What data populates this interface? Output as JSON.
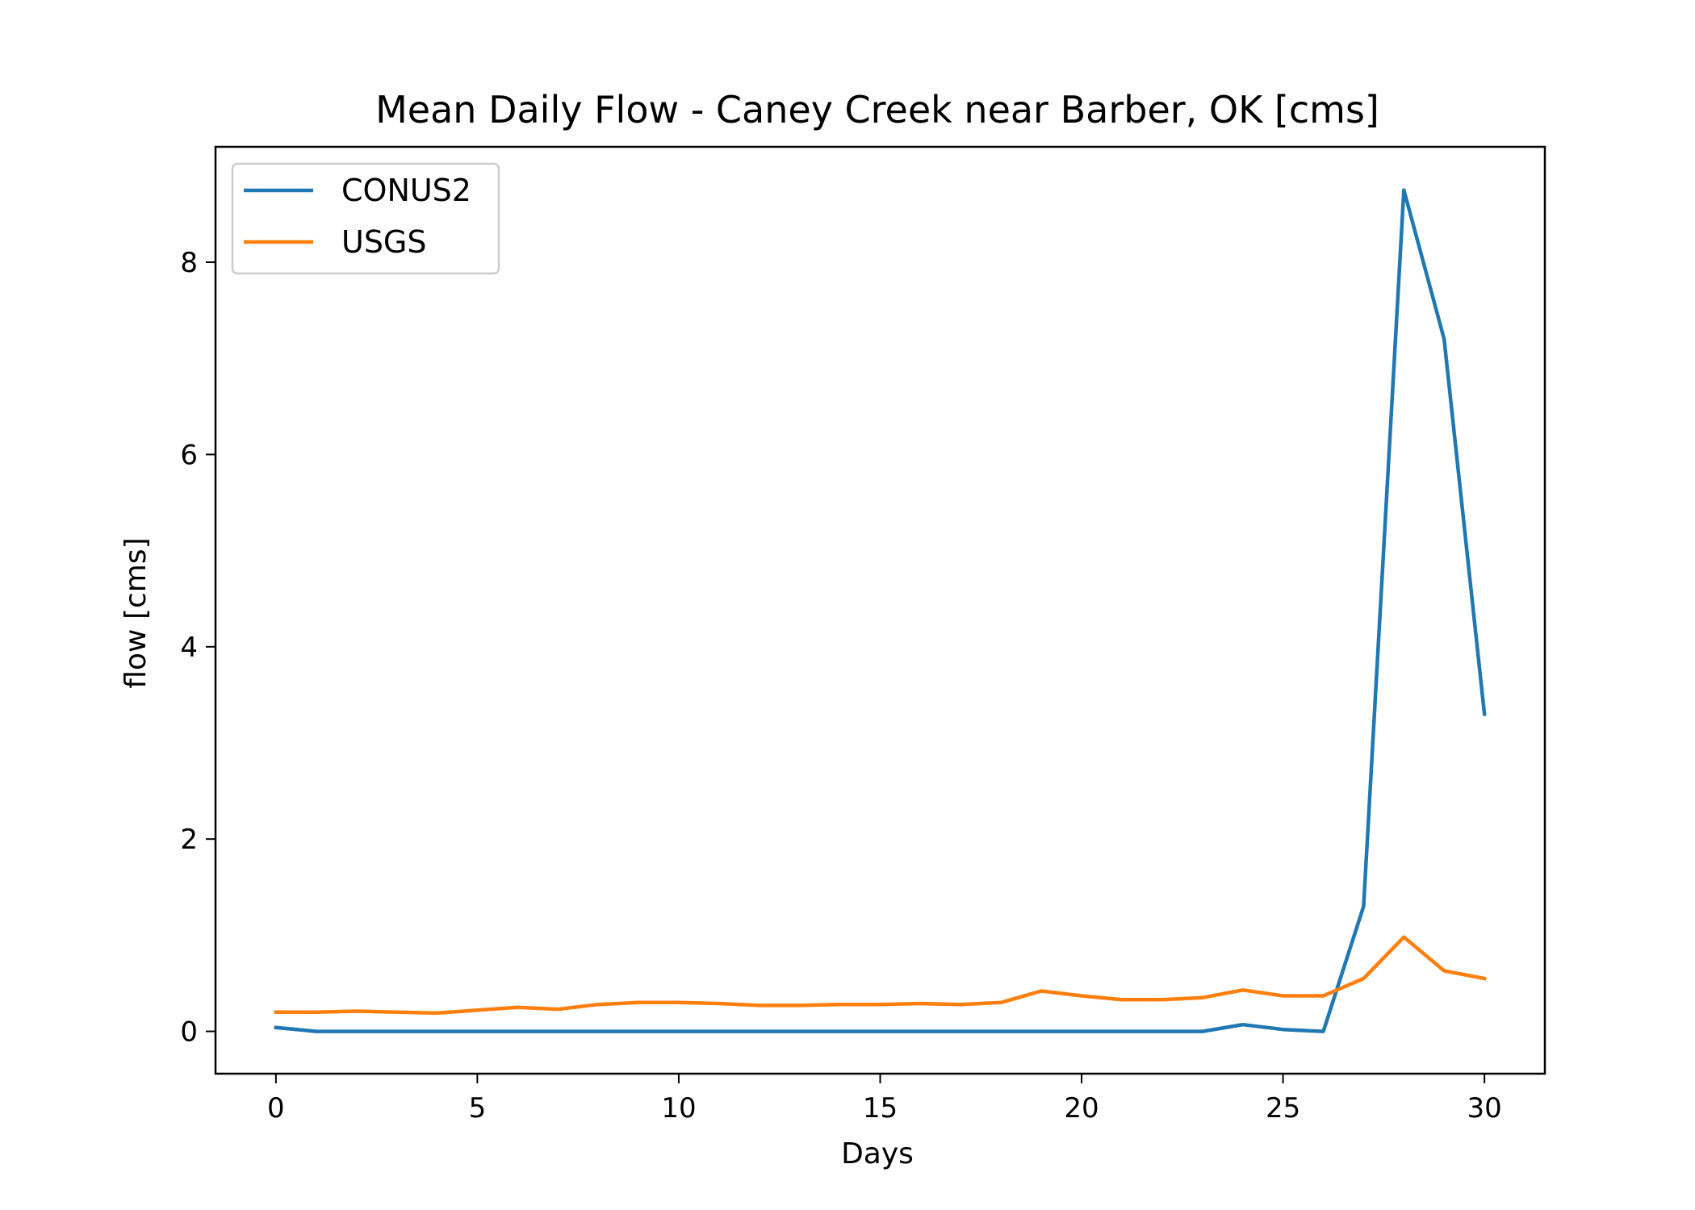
{
  "chart_data": {
    "type": "line",
    "title": "Mean Daily Flow - Caney Creek near Barber, OK [cms]",
    "xlabel": "Days",
    "ylabel": "flow [cms]",
    "xlim": [
      -1.5,
      31.5
    ],
    "ylim": [
      -0.44,
      9.2
    ],
    "xticks": [
      0,
      5,
      10,
      15,
      20,
      25,
      30
    ],
    "yticks": [
      0,
      2,
      4,
      6,
      8
    ],
    "grid": false,
    "legend_position": "top-left",
    "x": [
      0,
      1,
      2,
      3,
      4,
      5,
      6,
      7,
      8,
      9,
      10,
      11,
      12,
      13,
      14,
      15,
      16,
      17,
      18,
      19,
      20,
      21,
      22,
      23,
      24,
      25,
      26,
      27,
      28,
      29,
      30
    ],
    "series": [
      {
        "name": "CONUS2",
        "color": "#1f77b4",
        "values": [
          0.04,
          0.0,
          0.0,
          0.0,
          0.0,
          0.0,
          0.0,
          0.0,
          0.0,
          0.0,
          0.0,
          0.0,
          0.0,
          0.0,
          0.0,
          0.0,
          0.0,
          0.0,
          0.0,
          0.0,
          0.0,
          0.0,
          0.0,
          0.0,
          0.07,
          0.02,
          0.0,
          1.3,
          8.75,
          7.2,
          3.3
        ]
      },
      {
        "name": "USGS",
        "color": "#ff7f0e",
        "values": [
          0.2,
          0.2,
          0.21,
          0.2,
          0.19,
          0.22,
          0.25,
          0.23,
          0.28,
          0.3,
          0.3,
          0.29,
          0.27,
          0.27,
          0.28,
          0.28,
          0.29,
          0.28,
          0.3,
          0.42,
          0.37,
          0.33,
          0.33,
          0.35,
          0.43,
          0.37,
          0.37,
          0.55,
          0.98,
          0.63,
          0.55
        ]
      }
    ]
  }
}
